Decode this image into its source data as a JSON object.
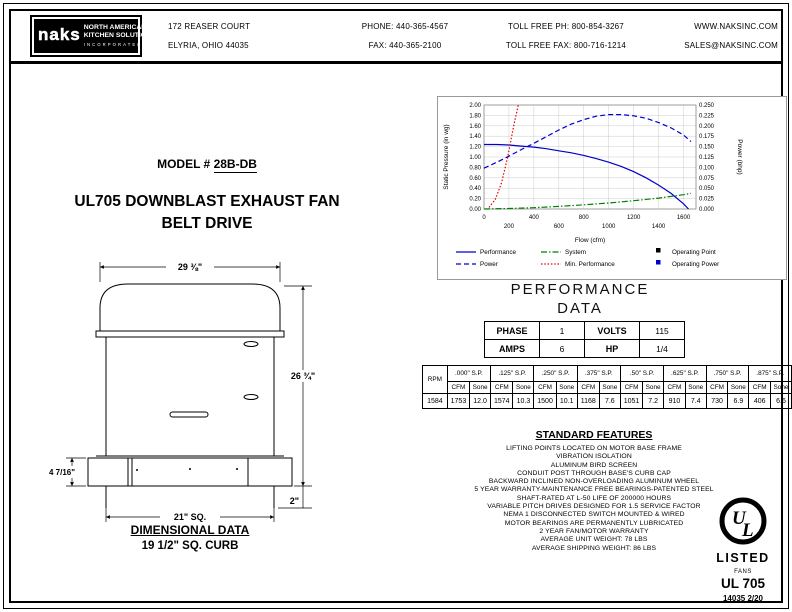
{
  "header": {
    "logo": {
      "brand": "naks",
      "line1": "NORTH AMERICAN",
      "line2": "KITCHEN SOLUTIONS",
      "line3": "INCORPORATED"
    },
    "address_line1": "172 REASER COURT",
    "address_line2": "ELYRIA, OHIO 44035",
    "phone": "PHONE: 440-365-4567",
    "fax": "FAX: 440-365-2100",
    "tollfree_phone": "TOLL FREE PH: 800-854-3267",
    "tollfree_fax": "TOLL FREE FAX: 800-716-1214",
    "website": "WWW.NAKSINC.COM",
    "email": "SALES@NAKSINC.COM"
  },
  "model": {
    "prefix": "MODEL # ",
    "number": "28B-DB"
  },
  "product_title": {
    "line1": "UL705 DOWNBLAST EXHAUST FAN",
    "line2": "BELT DRIVE"
  },
  "drawing": {
    "dim_width": "29 ⅜\"",
    "dim_height": "26 ¾\"",
    "dim_base_height": "4 7/16\"",
    "dim_lip": "2\"",
    "dim_base_width": "21\" SQ.",
    "footer_title": "DIMENSIONAL DATA",
    "footer_subtitle": "19 1/2\" SQ. CURB"
  },
  "chart_data": {
    "type": "line",
    "xlabel": "Flow (cfm)",
    "ylabel_left": "Static Pressure (in wg)",
    "ylabel_right": "Power (bhp)",
    "xlim": [
      0,
      1700
    ],
    "ylim_left": [
      0,
      2.0
    ],
    "ylim_right": [
      0,
      0.25
    ],
    "x_ticks": [
      0,
      200,
      400,
      600,
      800,
      1000,
      1200,
      1400,
      1600
    ],
    "y_ticks_left": [
      "0.00",
      "0.20",
      "0.40",
      "0.60",
      "0.80",
      "1.00",
      "1.20",
      "1.40",
      "1.60",
      "1.80",
      "2.00"
    ],
    "y_ticks_right": [
      "0.000",
      "0.025",
      "0.050",
      "0.075",
      "0.100",
      "0.125",
      "0.150",
      "0.175",
      "0.200",
      "0.225",
      "0.250"
    ],
    "grid": true,
    "legend_position": "bottom",
    "series": [
      {
        "name": "Performance",
        "axis": "left",
        "color": "#0000cc",
        "dash": "solid",
        "x": [
          0,
          100,
          200,
          300,
          400,
          500,
          600,
          700,
          800,
          900,
          1000,
          1100,
          1200,
          1300,
          1400,
          1500,
          1600,
          1640
        ],
        "y": [
          1.24,
          1.24,
          1.23,
          1.21,
          1.19,
          1.16,
          1.12,
          1.08,
          1.03,
          0.97,
          0.9,
          0.82,
          0.72,
          0.6,
          0.46,
          0.3,
          0.1,
          0.0
        ]
      },
      {
        "name": "Power",
        "axis": "right",
        "color": "#0000cc",
        "dash": "dashed",
        "x": [
          0,
          100,
          200,
          300,
          400,
          500,
          600,
          700,
          800,
          900,
          1000,
          1100,
          1200,
          1300,
          1400,
          1500,
          1600,
          1660
        ],
        "y": [
          0.098,
          0.112,
          0.127,
          0.143,
          0.158,
          0.174,
          0.19,
          0.204,
          0.215,
          0.223,
          0.227,
          0.227,
          0.224,
          0.218,
          0.208,
          0.195,
          0.178,
          0.162
        ]
      },
      {
        "name": "System",
        "axis": "left",
        "color": "#007f00",
        "dash": "dashdot",
        "x": [
          0,
          200,
          400,
          600,
          800,
          1000,
          1200,
          1400,
          1600,
          1660
        ],
        "y": [
          0.0,
          0.01,
          0.025,
          0.05,
          0.08,
          0.115,
          0.16,
          0.21,
          0.275,
          0.3
        ]
      },
      {
        "name": "Min. Performance",
        "axis": "left",
        "color": "#e60000",
        "dash": "dotted",
        "x": [
          40,
          90,
          140,
          190,
          240,
          275
        ],
        "y": [
          0.03,
          0.18,
          0.5,
          1.0,
          1.62,
          2.0
        ]
      }
    ],
    "legend": [
      {
        "label": "Performance",
        "type": "line",
        "color": "#0000cc",
        "dash": "solid",
        "col": 0,
        "row": 0
      },
      {
        "label": "Power",
        "type": "line",
        "color": "#0000cc",
        "dash": "dashed",
        "col": 0,
        "row": 1
      },
      {
        "label": "System",
        "type": "line",
        "color": "#007f00",
        "dash": "dashdot",
        "col": 1,
        "row": 0
      },
      {
        "label": "Min. Performance",
        "type": "line",
        "color": "#e60000",
        "dash": "dotted",
        "col": 1,
        "row": 1
      },
      {
        "label": "Operating Point",
        "type": "square",
        "color": "#000000",
        "col": 2,
        "row": 0
      },
      {
        "label": "Operating Power",
        "type": "square",
        "color": "#0000cc",
        "col": 2,
        "row": 1
      }
    ]
  },
  "performance_data": {
    "title_line1": "PERFORMANCE",
    "title_line2": "DATA",
    "rows": [
      [
        "PHASE",
        "1",
        "VOLTS",
        "115"
      ],
      [
        "AMPS",
        "6",
        "HP",
        "1/4"
      ]
    ]
  },
  "rpm_table": {
    "rpm_label": "RPM",
    "rpm_value": "1584",
    "sp_headers": [
      ".000\" S.P.",
      ".125\" S.P.",
      ".250\" S.P.",
      ".375\" S.P.",
      ".50\" S.P.",
      ".625\" S.P.",
      ".750\" S.P.",
      ".875\" S.P."
    ],
    "sub_headers": [
      "CFM",
      "Sone"
    ],
    "values": [
      [
        "1753",
        "12.0"
      ],
      [
        "1574",
        "10.3"
      ],
      [
        "1500",
        "10.1"
      ],
      [
        "1168",
        "7.6"
      ],
      [
        "1051",
        "7.2"
      ],
      [
        "910",
        "7.4"
      ],
      [
        "730",
        "6.9"
      ],
      [
        "406",
        "6.6"
      ]
    ]
  },
  "standard_features": {
    "title": "STANDARD FEATURES",
    "items": [
      "LIFTING POINTS LOCATED ON MOTOR BASE FRAME",
      "VIBRATION ISOLATION",
      "ALUMINUM BIRD SCREEN",
      "CONDUIT POST THROUGH BASE'S CURB CAP",
      "BACKWARD INCLINED NON-OVERLOADING ALUMINUM WHEEL",
      "5 YEAR WARRANTY-MAINTENANCE FREE BEARINGS-PATENTED STEEL",
      "SHAFT-RATED AT L-50 LIFE OF 200000 HOURS",
      "VARIABLE PITCH DRIVES DESIGNED FOR 1.5 SERVICE FACTOR",
      "NEMA 1 DISCONNECTED SWITCH MOUNTED & WIRED",
      "MOTOR BEARINGS ARE PERMANENTLY LUBRICATED",
      "2 YEAR FAN/MOTOR WARRANTY",
      "AVERAGE UNIT WEIGHT: 78 LBS",
      "AVERAGE SHIPPING WEIGHT: 86 LBS"
    ]
  },
  "ul_mark": {
    "letters": "UL",
    "listed": "LISTED",
    "fans": "FANS",
    "standard": "UL 705",
    "doc_number": "14035 2/20"
  }
}
